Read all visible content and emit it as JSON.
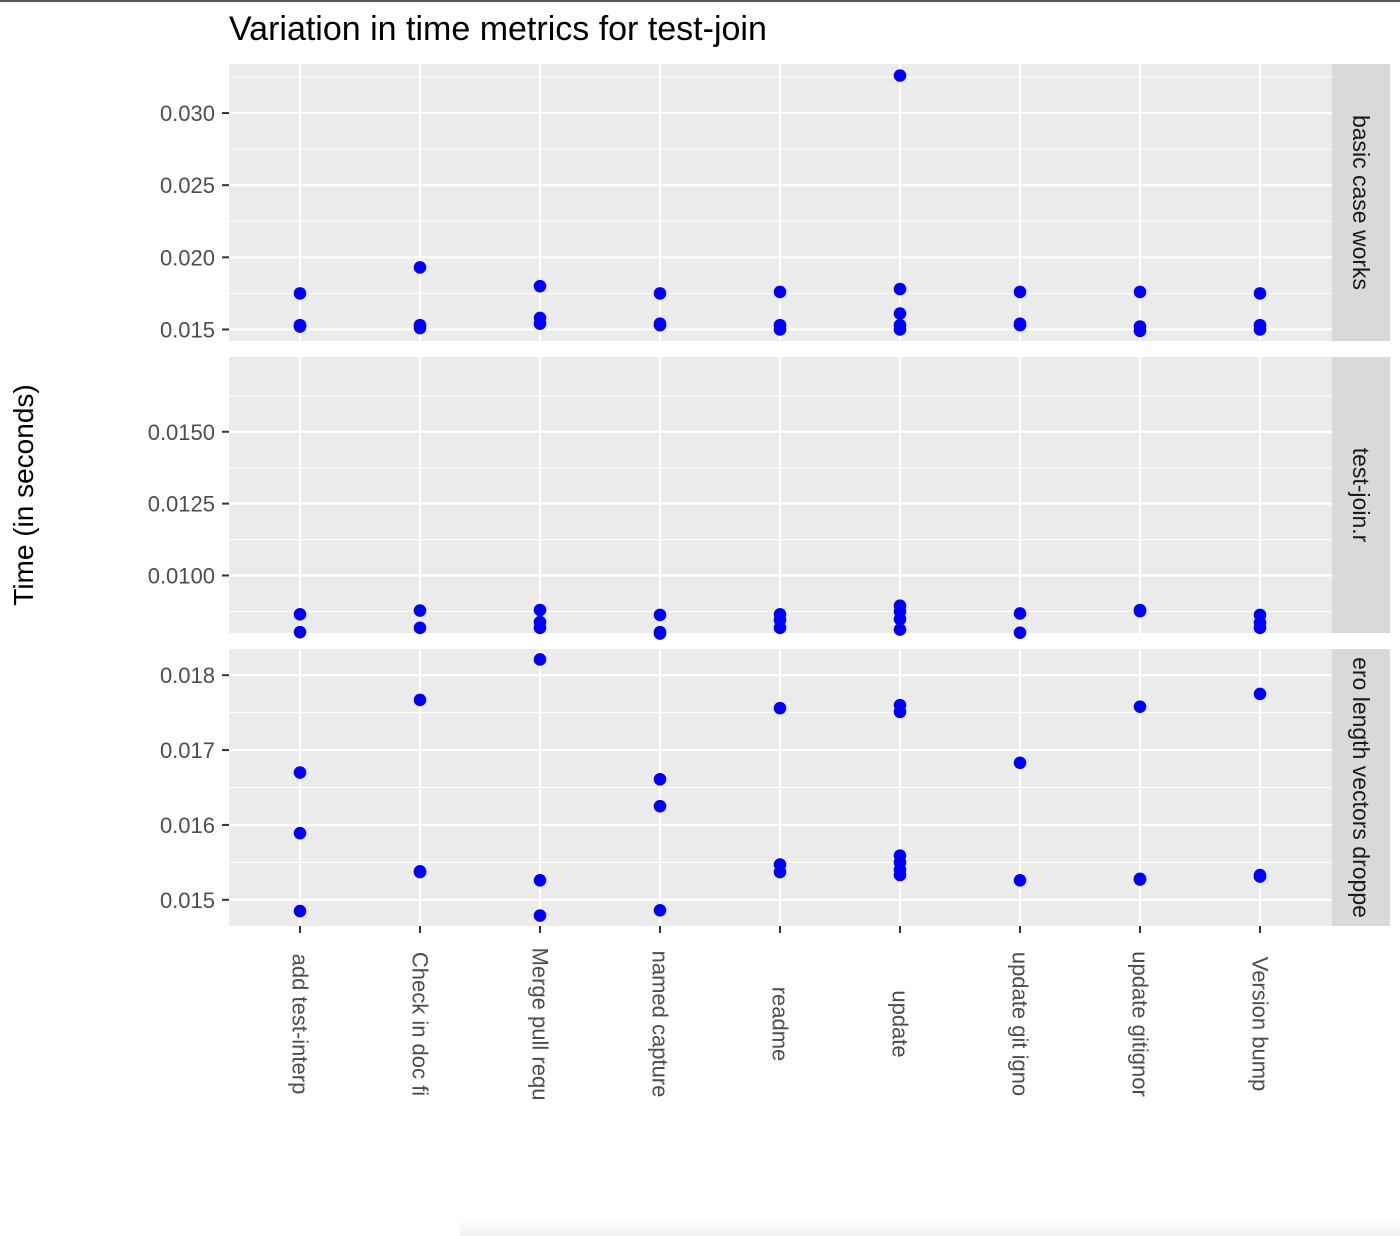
{
  "title": "Variation in time metrics for test-join",
  "ylabel": "Time (in seconds)",
  "colors": {
    "point": "#0000ff",
    "panel_bg": "#ebebeb",
    "strip_bg": "#d9d9d9",
    "grid": "#ffffff",
    "tick_text": "#4d4d4d"
  },
  "chart_data": {
    "type": "scatter",
    "title": "Variation in time metrics for test-join",
    "xlabel": "",
    "ylabel": "Time (in seconds)",
    "grid": true,
    "facet_direction": "rows",
    "categories": [
      "add test-interp",
      "Check in doc fi",
      "Merge pull requ",
      "named capture",
      "readme",
      "update",
      "update git igno",
      "update gitignor",
      "Version bump"
    ],
    "panels": [
      {
        "strip": "basic case works",
        "ylim": [
          0.0142,
          0.0334
        ],
        "yticks": [
          0.015,
          0.02,
          0.025,
          0.03
        ],
        "yticklabels": [
          "0.015",
          "0.020",
          "0.025",
          "0.030"
        ],
        "points": [
          {
            "x": "add test-interp",
            "y": [
              0.0175,
              0.0153,
              0.0152
            ]
          },
          {
            "x": "Check in doc fi",
            "y": [
              0.0193,
              0.0153,
              0.0151
            ]
          },
          {
            "x": "Merge pull requ",
            "y": [
              0.018,
              0.0158,
              0.0154
            ]
          },
          {
            "x": "named capture",
            "y": [
              0.0175,
              0.0154,
              0.0153
            ]
          },
          {
            "x": "readme",
            "y": [
              0.0176,
              0.0153,
              0.015
            ]
          },
          {
            "x": "update",
            "y": [
              0.0326,
              0.0178,
              0.0161,
              0.0153,
              0.015
            ]
          },
          {
            "x": "update git igno",
            "y": [
              0.0176,
              0.0154,
              0.0153
            ]
          },
          {
            "x": "update gitignor",
            "y": [
              0.0176,
              0.0152,
              0.0149
            ]
          },
          {
            "x": "Version bump",
            "y": [
              0.0175,
              0.0153,
              0.015
            ]
          }
        ]
      },
      {
        "strip": "test-join.r",
        "ylim": [
          0.008,
          0.0176
        ],
        "yticks": [
          0.01,
          0.0125,
          0.015
        ],
        "yticklabels": [
          "0.0100",
          "0.0125",
          "0.0150"
        ],
        "points": [
          {
            "x": "add test-interp",
            "y": [
              0.00865,
              0.00803
            ]
          },
          {
            "x": "Check in doc fi",
            "y": [
              0.00878,
              0.00818
            ]
          },
          {
            "x": "Merge pull requ",
            "y": [
              0.0088,
              0.00838,
              0.00818
            ]
          },
          {
            "x": "named capture",
            "y": [
              0.00863,
              0.00803,
              0.00798
            ]
          },
          {
            "x": "readme",
            "y": [
              0.00865,
              0.00845,
              0.00818
            ]
          },
          {
            "x": "update",
            "y": [
              0.00895,
              0.00875,
              0.00848,
              0.00812
            ]
          },
          {
            "x": "update git igno",
            "y": [
              0.00868,
              0.00801
            ]
          },
          {
            "x": "update gitignor",
            "y": [
              0.0088,
              0.00876
            ]
          },
          {
            "x": "Version bump",
            "y": [
              0.00863,
              0.00836,
              0.00818
            ]
          }
        ]
      },
      {
        "strip": "ero length vectors droppe",
        "ylim": [
          0.01465,
          0.01835
        ],
        "yticks": [
          0.015,
          0.016,
          0.017,
          0.018
        ],
        "yticklabels": [
          "0.015",
          "0.016",
          "0.017",
          "0.018"
        ],
        "points": [
          {
            "x": "add test-interp",
            "y": [
              0.0167,
              0.01589,
              0.01485
            ]
          },
          {
            "x": "Check in doc fi",
            "y": [
              0.01767,
              0.01538,
              0.01537
            ]
          },
          {
            "x": "Merge pull requ",
            "y": [
              0.01821,
              0.01526,
              0.01479
            ]
          },
          {
            "x": "named capture",
            "y": [
              0.01661,
              0.01625,
              0.01486
            ]
          },
          {
            "x": "readme",
            "y": [
              0.01756,
              0.01547,
              0.01537
            ]
          },
          {
            "x": "update",
            "y": [
              0.0176,
              0.01751,
              0.01559,
              0.0155,
              0.0154,
              0.01533
            ]
          },
          {
            "x": "update git igno",
            "y": [
              0.01683,
              0.01526
            ]
          },
          {
            "x": "update gitignor",
            "y": [
              0.01758,
              0.01528,
              0.01527
            ]
          },
          {
            "x": "Version bump",
            "y": [
              0.01775,
              0.01533,
              0.01531
            ]
          }
        ]
      }
    ]
  }
}
